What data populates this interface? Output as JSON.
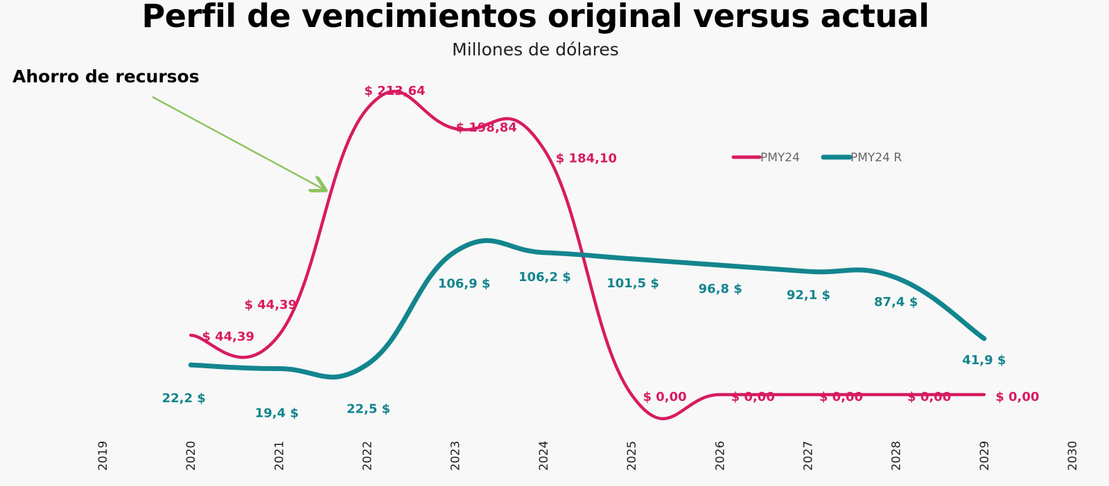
{
  "chart_data": {
    "type": "line",
    "title": "Perfil de vencimientos original versus actual",
    "subtitle": "Millones de dólares",
    "annotation": "Ahorro de recursos",
    "x_ticks": [
      "2019",
      "2020",
      "2021",
      "2022",
      "2023",
      "2024",
      "2025",
      "2026",
      "2027",
      "2028",
      "2029",
      "2030"
    ],
    "x": [
      2020,
      2021,
      2022,
      2023,
      2024,
      2025,
      2026,
      2027,
      2028,
      2029
    ],
    "xlim": [
      2019,
      2030
    ],
    "ylim": [
      0,
      265
    ],
    "grid": false,
    "legend_position": "top-right",
    "series": [
      {
        "name": "PMY24",
        "color": "#d81b60",
        "values": [
          44.39,
          44.39,
          213.64,
          198.84,
          184.1,
          0,
          0,
          0,
          0,
          0
        ],
        "labels": [
          "$ 44,39",
          "$ 44,39",
          "$ 213,64",
          "$ 198,84",
          "$ 184,10",
          "$ 0,00",
          "$ 0,00",
          "$ 0,00",
          "$ 0,00",
          "$ 0,00"
        ]
      },
      {
        "name": "PMY24 R",
        "color": "#13858e",
        "values": [
          22.2,
          19.4,
          22.5,
          106.9,
          106.2,
          101.5,
          96.8,
          92.1,
          87.4,
          41.9
        ],
        "labels": [
          "22,2 $",
          "19,4 $",
          "22,5 $",
          "106,9 $",
          "106,2 $",
          "101,5 $",
          "96,8 $",
          "92,1 $",
          "87,4 $",
          "41,9 $"
        ]
      }
    ],
    "arrow_color": "#8fc360"
  }
}
